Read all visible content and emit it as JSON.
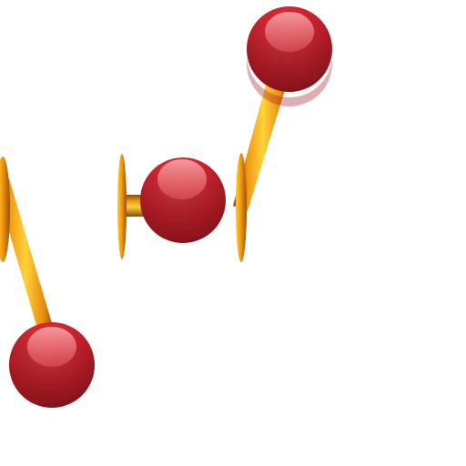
{
  "colors": {
    "background": "#ffffff",
    "ball_light": "#f07a80",
    "ball_mid": "#d42330",
    "ball_dark": "#8e1820",
    "stick_light": "#ffd23a",
    "stick_mid": "#f39a12",
    "stick_dark": "#8a4a08"
  },
  "icons": {
    "ball": "red-glossy-sphere-icon",
    "stick": "orange-rod-icon",
    "cap": "orange-disc-cap-icon"
  }
}
